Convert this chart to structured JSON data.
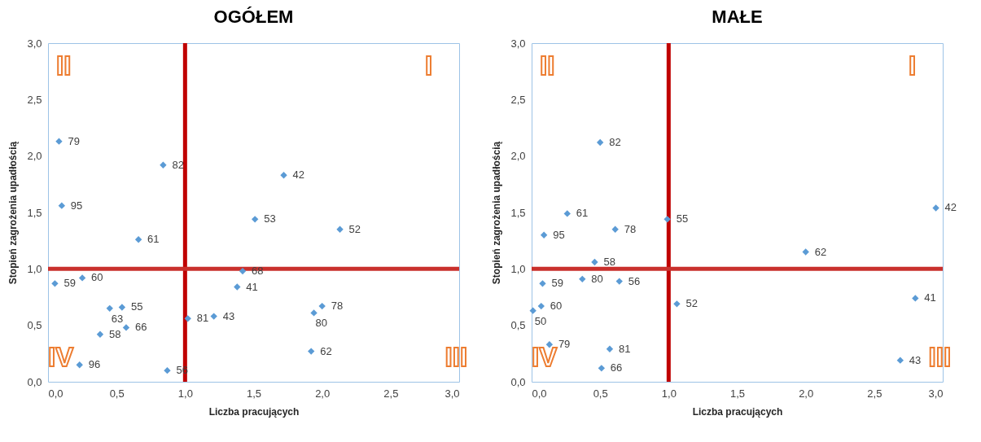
{
  "chart_data": [
    {
      "type": "scatter",
      "title": "OGÓŁEM",
      "xlabel": "Liczba pracujących",
      "ylabel": "Stopień zagrożenia upadłością",
      "marker": "diamond",
      "grid": false,
      "legend": false,
      "xlim": [
        0,
        3
      ],
      "ylim": [
        0,
        3
      ],
      "xticks": [
        {
          "value": 0,
          "label": "0,0"
        },
        {
          "value": 0.5,
          "label": "0,5"
        },
        {
          "value": 1,
          "label": "1,0"
        },
        {
          "value": 1.5,
          "label": "1,5"
        },
        {
          "value": 2,
          "label": "2,0"
        },
        {
          "value": 2.5,
          "label": "2,5"
        },
        {
          "value": 3,
          "label": "3,0"
        }
      ],
      "yticks": [
        {
          "value": 0,
          "label": "0,0"
        },
        {
          "value": 0.5,
          "label": "0,5"
        },
        {
          "value": 1,
          "label": "1,0"
        },
        {
          "value": 1.5,
          "label": "1,5"
        },
        {
          "value": 2,
          "label": "2,0"
        },
        {
          "value": 2.5,
          "label": "2,5"
        },
        {
          "value": 3,
          "label": "3,0"
        }
      ],
      "x": [
        0.08,
        0.84,
        1.72,
        0.1,
        1.51,
        2.13,
        0.66,
        1.42,
        0.05,
        0.25,
        1.38,
        0.45,
        0.54,
        0.57,
        0.38,
        0.23,
        0.87,
        1.02,
        1.21,
        2.0,
        1.94,
        1.92
      ],
      "series": [
        {
          "color": "#5b9bd5",
          "values": [
            2.13,
            1.92,
            1.83,
            1.56,
            1.44,
            1.35,
            1.26,
            0.98,
            0.87,
            0.92,
            0.84,
            0.65,
            0.66,
            0.48,
            0.42,
            0.15,
            0.1,
            0.56,
            0.58,
            0.67,
            0.61,
            0.27
          ]
        }
      ],
      "ref_lines": [
        {
          "axis": "x",
          "value": 1,
          "color": "#c00000"
        },
        {
          "axis": "y",
          "value": 1,
          "color": "#c9302c"
        }
      ],
      "annotations": [
        "II",
        "I",
        "IV",
        "III",
        {
          "text": "79",
          "x": 0.08,
          "y": 2.13
        },
        {
          "text": "82",
          "x": 0.84,
          "y": 1.92
        },
        {
          "text": "42",
          "x": 1.72,
          "y": 1.83
        },
        {
          "text": "95",
          "x": 0.1,
          "y": 1.56
        },
        {
          "text": "53",
          "x": 1.51,
          "y": 1.44
        },
        {
          "text": "52",
          "x": 2.13,
          "y": 1.35
        },
        {
          "text": "61",
          "x": 0.66,
          "y": 1.26
        },
        {
          "text": "68",
          "x": 1.42,
          "y": 0.98
        },
        {
          "text": "59",
          "x": 0.05,
          "y": 0.87
        },
        {
          "text": "60",
          "x": 0.25,
          "y": 0.92
        },
        {
          "text": "41",
          "x": 1.38,
          "y": 0.84
        },
        {
          "text": "63",
          "x": 0.45,
          "y": 0.65
        },
        {
          "text": "55",
          "x": 0.54,
          "y": 0.66
        },
        {
          "text": "66",
          "x": 0.57,
          "y": 0.48
        },
        {
          "text": "58",
          "x": 0.38,
          "y": 0.42
        },
        {
          "text": "96",
          "x": 0.23,
          "y": 0.15
        },
        {
          "text": "56",
          "x": 0.87,
          "y": 0.1
        },
        {
          "text": "81",
          "x": 1.02,
          "y": 0.56
        },
        {
          "text": "43",
          "x": 1.21,
          "y": 0.58
        },
        {
          "text": "78",
          "x": 2.0,
          "y": 0.67
        },
        {
          "text": "80",
          "x": 1.94,
          "y": 0.61
        },
        {
          "text": "62",
          "x": 1.92,
          "y": 0.27
        }
      ]
    },
    {
      "type": "scatter",
      "title": "MAŁE",
      "xlabel": "Liczba pracujących",
      "ylabel": "Stopień zagrożenia upadłością",
      "marker": "diamond",
      "grid": false,
      "legend": false,
      "xlim": [
        0,
        3
      ],
      "ylim": [
        0,
        3
      ],
      "xticks": [
        {
          "value": 0,
          "label": "0,0"
        },
        {
          "value": 0.5,
          "label": "0,5"
        },
        {
          "value": 1,
          "label": "1,0"
        },
        {
          "value": 1.5,
          "label": "1,5"
        },
        {
          "value": 2,
          "label": "2,0"
        },
        {
          "value": 2.5,
          "label": "2,5"
        },
        {
          "value": 3,
          "label": "3,0"
        }
      ],
      "yticks": [
        {
          "value": 0,
          "label": "0,0"
        },
        {
          "value": 0.5,
          "label": "0,5"
        },
        {
          "value": 1,
          "label": "1,0"
        },
        {
          "value": 1.5,
          "label": "1,5"
        },
        {
          "value": 2,
          "label": "2,0"
        },
        {
          "value": 2.5,
          "label": "2,5"
        },
        {
          "value": 3,
          "label": "3,0"
        }
      ],
      "x": [
        0.5,
        0.26,
        0.61,
        0.99,
        2.95,
        0.09,
        2.0,
        0.46,
        0.08,
        0.37,
        0.64,
        0.07,
        0.01,
        1.06,
        2.8,
        0.13,
        0.57,
        0.51,
        2.69
      ],
      "series": [
        {
          "color": "#5b9bd5",
          "values": [
            2.12,
            1.49,
            1.35,
            1.44,
            1.54,
            1.3,
            1.15,
            1.06,
            0.87,
            0.91,
            0.89,
            0.67,
            0.63,
            0.69,
            0.74,
            0.33,
            0.29,
            0.12,
            0.19
          ]
        }
      ],
      "ref_lines": [
        {
          "axis": "x",
          "value": 1,
          "color": "#c00000"
        },
        {
          "axis": "y",
          "value": 1,
          "color": "#c9302c"
        }
      ],
      "annotations": [
        "II",
        "I",
        "IV",
        "III",
        {
          "text": "82",
          "x": 0.5,
          "y": 2.12
        },
        {
          "text": "61",
          "x": 0.26,
          "y": 1.49
        },
        {
          "text": "78",
          "x": 0.61,
          "y": 1.35
        },
        {
          "text": "55",
          "x": 0.99,
          "y": 1.44
        },
        {
          "text": "42",
          "x": 2.95,
          "y": 1.54
        },
        {
          "text": "95",
          "x": 0.09,
          "y": 1.3
        },
        {
          "text": "62",
          "x": 2.0,
          "y": 1.15
        },
        {
          "text": "58",
          "x": 0.46,
          "y": 1.06
        },
        {
          "text": "59",
          "x": 0.08,
          "y": 0.87
        },
        {
          "text": "80",
          "x": 0.37,
          "y": 0.91
        },
        {
          "text": "56",
          "x": 0.64,
          "y": 0.89
        },
        {
          "text": "60",
          "x": 0.07,
          "y": 0.67
        },
        {
          "text": "50",
          "x": 0.01,
          "y": 0.63
        },
        {
          "text": "52",
          "x": 1.06,
          "y": 0.69
        },
        {
          "text": "41",
          "x": 2.8,
          "y": 0.74
        },
        {
          "text": "79",
          "x": 0.13,
          "y": 0.33
        },
        {
          "text": "81",
          "x": 0.57,
          "y": 0.29
        },
        {
          "text": "66",
          "x": 0.51,
          "y": 0.12
        },
        {
          "text": "43",
          "x": 2.69,
          "y": 0.19
        }
      ]
    }
  ]
}
